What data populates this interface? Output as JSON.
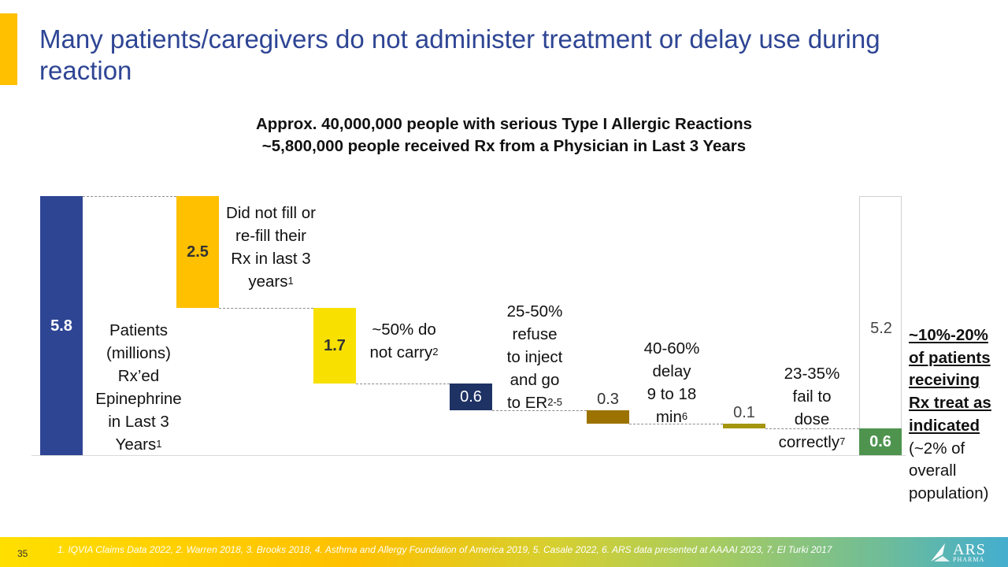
{
  "slide": {
    "title": "Many patients/caregivers do not administer treatment or delay use during reaction",
    "subtitle_lines": [
      "Approx. 40,000,000 people with serious Type I Allergic Reactions",
      "~5,800,000 people received Rx from a Physician in Last 3 Years"
    ],
    "page_number": "35"
  },
  "annotations": {
    "start": {
      "lines": [
        "Patients",
        "(millions)",
        "Rx’ed",
        "Epinephrine",
        "in Last 3"
      ],
      "last": "Years",
      "sup": "1"
    },
    "not_filled": {
      "lines": [
        "Did not fill or",
        "re-fill their",
        "Rx in last 3"
      ],
      "last": "years",
      "sup": "1"
    },
    "not_carry": {
      "lines": [
        "~50% do"
      ],
      "last": "not carry",
      "sup": "2"
    },
    "refuse": {
      "lines": [
        "25-50%",
        "refuse",
        "to inject",
        "and go"
      ],
      "last": "to ER",
      "sup": "2-5"
    },
    "delay": {
      "lines": [
        "40-60%",
        "delay",
        "9 to 18"
      ],
      "last": "min",
      "sup": "6"
    },
    "fail_dose": {
      "lines": [
        "23-35%",
        "fail to",
        "dose"
      ],
      "last": "correctly",
      "sup": "7"
    }
  },
  "callout": {
    "bold_underlined": [
      "~10%-20%",
      "of patients",
      "receiving",
      "Rx treat as",
      "indicated"
    ],
    "plain": [
      "(~2% of",
      "overall",
      "population)"
    ]
  },
  "footer": {
    "references": "1. IQVIA Claims Data 2022, 2. Warren 2018, 3. Brooks 2018, 4. Asthma and Allergy Foundation of America 2019, 5. Casale 2022, 6. ARS data presented at AAAAI 2023, 7. El Turki 2017",
    "logo_main": "ARS",
    "logo_sub": "PHARMA",
    "logo_icon": "ars-pharma-logo-icon"
  },
  "colors": {
    "title_blue": "#2E4594",
    "accent_orange": "#FFC000",
    "bar_start": "#2E4594",
    "bar_not_filled": "#FFC000",
    "bar_not_carry": "#F8E000",
    "bar_refuse": "#1F3264",
    "bar_delay": "#9C7300",
    "bar_fail_dose": "#A5950A",
    "bar_remaining_outline": "#d0d0d0",
    "bar_treated": "#4E944F"
  },
  "chart_data": {
    "type": "bar",
    "subtype": "waterfall",
    "title": "Patients (millions) Rx'ed Epinephrine in Last 3 Years",
    "unit": "millions of patients",
    "categories": [
      "Patients Rx'ed Epinephrine in Last 3 Years",
      "Did not fill or re-fill their Rx in last 3 years",
      "~50% do not carry",
      "25-50% refuse to inject and go to ER",
      "40-60% delay 9 to 18 min",
      "23-35% fail to dose correctly",
      "Remaining / treat as indicated"
    ],
    "values": [
      5.8,
      2.5,
      1.7,
      0.6,
      0.3,
      0.1,
      0.6
    ],
    "labels": [
      "5.8",
      "2.5",
      "1.7",
      "0.6",
      "0.3",
      "0.1",
      "0.6"
    ],
    "steps": [
      {
        "label": "5.8",
        "kind": "total",
        "start": 0,
        "end": 5.8
      },
      {
        "label": "2.5",
        "kind": "decrease",
        "start": 5.8,
        "end": 3.3
      },
      {
        "label": "1.7",
        "kind": "decrease",
        "start": 3.3,
        "end": 1.6
      },
      {
        "label": "0.6",
        "kind": "decrease",
        "start": 1.6,
        "end": 1.0
      },
      {
        "label": "0.3",
        "kind": "decrease",
        "start": 1.0,
        "end": 0.7
      },
      {
        "label": "0.1",
        "kind": "decrease",
        "start": 0.7,
        "end": 0.6
      },
      {
        "label": "0.6",
        "kind": "final",
        "start": 0,
        "end": 0.6
      }
    ],
    "remaining_outline_label": "5.2",
    "remaining_outline_value": 5.2,
    "ylim": [
      0,
      5.8
    ],
    "xlabel": "",
    "ylabel": "",
    "grid": false,
    "legend": "none",
    "annotations": [
      "~10%-20% of patients receiving Rx treat as indicated (~2% of overall population)"
    ]
  }
}
